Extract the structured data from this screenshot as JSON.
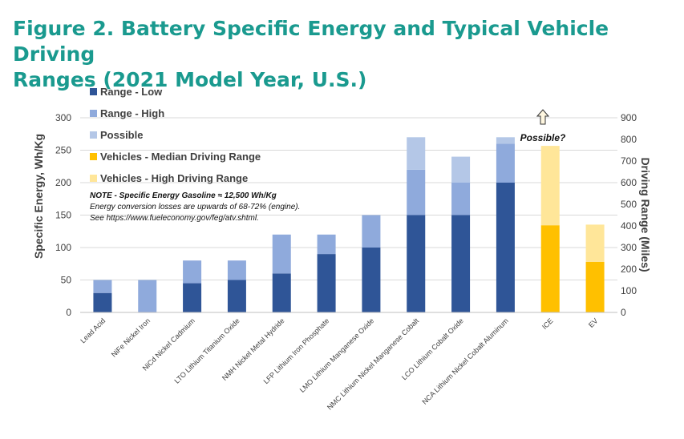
{
  "figure": {
    "title_line1": "Figure 2.  Battery Specific Energy and Typical Vehicle Driving",
    "title_line2": "Ranges (2021 Model Year, U.S.)"
  },
  "colors": {
    "range_low": "#2f5597",
    "range_high": "#8faadc",
    "possible": "#b4c7e7",
    "vehicle_median": "#ffc000",
    "vehicle_high": "#ffe699",
    "title": "#1a9a8f",
    "axis_text": "#404040",
    "grid": "#d9d9d9"
  },
  "note": {
    "line1": "NOTE - Specific Energy Gasoline ≈ 12,500 Wh/Kg",
    "line2": "Energy conversion losses are upwards of 68-72% (engine).",
    "line3": "See https://www.fueleconomy.gov/feg/atv.shtml."
  },
  "annotation": {
    "label": "Possible?",
    "icon": "up-arrow-icon"
  },
  "chart_data": {
    "type": "bar",
    "stacked": true,
    "categories": [
      "Lead Acid",
      "NiFe Nickel Iron",
      "NiCd Nickel Cadmium",
      "LTO Lithium Titanium Oxide",
      "NMH Nickel Metal Hydride",
      "LFP Lithium Iron Phosphate",
      "LMO Lithium Manganese Oxide",
      "NMC Lithium Nickel Manganese Cobalt",
      "LCO Lithium Cobalt Oxide",
      "NCA Lithium Nickel Cobalt Aluminum",
      "ICE",
      "EV"
    ],
    "series": [
      {
        "name": "Range - Low",
        "axis": "left",
        "values": [
          30,
          0,
          45,
          50,
          60,
          90,
          100,
          150,
          150,
          200,
          null,
          null
        ]
      },
      {
        "name": "Range - High",
        "axis": "left",
        "values": [
          20,
          50,
          35,
          30,
          60,
          30,
          50,
          70,
          50,
          60,
          null,
          null
        ]
      },
      {
        "name": "Possible",
        "axis": "left",
        "values": [
          0,
          0,
          0,
          0,
          0,
          0,
          0,
          50,
          40,
          10,
          null,
          null
        ]
      },
      {
        "name": "Vehicles - Median Driving Range",
        "axis": "right",
        "values": [
          null,
          null,
          null,
          null,
          null,
          null,
          null,
          null,
          null,
          null,
          403,
          234
        ]
      },
      {
        "name": "Vehicles - High Driving Range",
        "axis": "right",
        "values": [
          null,
          null,
          null,
          null,
          null,
          null,
          null,
          null,
          null,
          null,
          367,
          172
        ]
      }
    ],
    "title": "Figure 2.  Battery Specific Energy and Typical Vehicle Driving Ranges (2021 Model Year, U.S.)",
    "xlabel": "",
    "ylabel": "Specific Energy, Wh/Kg",
    "y2label": "Driving Range (Miles)",
    "ylim": [
      0,
      300
    ],
    "y2lim": [
      0,
      900
    ],
    "yticks": [
      0,
      50,
      100,
      150,
      200,
      250,
      300
    ],
    "y2ticks": [
      0,
      100,
      200,
      300,
      400,
      500,
      600,
      700,
      800,
      900
    ],
    "grid": true,
    "legend_position": "top-left"
  }
}
